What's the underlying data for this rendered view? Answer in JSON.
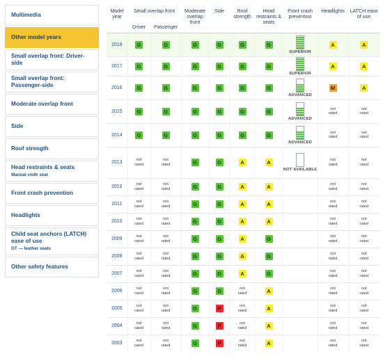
{
  "sidebar": {
    "items": [
      {
        "label": "Multimedia",
        "sub": "",
        "active": false,
        "h": 30
      },
      {
        "label": "Other model years",
        "sub": "",
        "active": true,
        "h": 30
      },
      {
        "label": "Small overlap front: Driver-side",
        "sub": "",
        "active": false,
        "h": 30
      },
      {
        "label": "Small overlap front: Passenger-side",
        "sub": "",
        "active": false,
        "h": 30
      },
      {
        "label": "Moderate overlap front",
        "sub": "",
        "active": false,
        "h": 30
      },
      {
        "label": "Side",
        "sub": "",
        "active": false,
        "h": 30
      },
      {
        "label": "Roof strength",
        "sub": "",
        "active": false,
        "h": 30
      },
      {
        "label": "Head restraints & seats",
        "sub": "Manual cloth seat",
        "active": false,
        "h": 30
      },
      {
        "label": "Front crash prevention",
        "sub": "",
        "active": false,
        "h": 30
      },
      {
        "label": "Headlights",
        "sub": "",
        "active": false,
        "h": 30
      },
      {
        "label": "Child seat anchors (LATCH) ease of use",
        "sub": "GT — leather seats",
        "active": false,
        "h": 40
      },
      {
        "label": "Other safety features",
        "sub": "",
        "active": false,
        "h": 30
      }
    ]
  },
  "table": {
    "headers": {
      "model_year": "Model year",
      "small_overlap": "Small overlap front",
      "driver": "Driver",
      "passenger": "Passenger",
      "moderate": "Moderate overlap front",
      "side": "Side",
      "roof": "Roof strength",
      "head": "Head restraints & seats",
      "fcp": "Front crash prevention",
      "headlights": "Headlights",
      "latch": "LATCH ease of use"
    },
    "not_rated": "not rated",
    "rows": [
      {
        "year": "2018",
        "driver": "G",
        "passenger": "G",
        "moderate": "G",
        "side": "G",
        "roof": "G",
        "head": "G",
        "fcp": {
          "bars": 6,
          "label": "SUPERIOR"
        },
        "headlights": "A",
        "latch": "A"
      },
      {
        "year": "2017",
        "driver": "G",
        "passenger": "G",
        "moderate": "G",
        "side": "G",
        "roof": "G",
        "head": "G",
        "fcp": {
          "bars": 6,
          "label": "SUPERIOR"
        },
        "headlights": "A",
        "latch": "A"
      },
      {
        "year": "2016",
        "driver": "G",
        "passenger": "G",
        "moderate": "G",
        "side": "G",
        "roof": "G",
        "head": "G",
        "fcp": {
          "bars": 4,
          "label": "ADVANCED"
        },
        "headlights": "M",
        "latch": "A"
      },
      {
        "year": "2015",
        "driver": "G",
        "passenger": "G",
        "moderate": "G",
        "side": "G",
        "roof": "G",
        "head": "G",
        "fcp": {
          "bars": 4,
          "label": "ADVANCED"
        },
        "headlights": "NR",
        "latch": "NR"
      },
      {
        "year": "2014",
        "driver": "G",
        "passenger": "G",
        "moderate": "G",
        "side": "G",
        "roof": "G",
        "head": "G",
        "fcp": {
          "bars": 4,
          "label": "ADVANCED"
        },
        "headlights": "NR",
        "latch": "NR"
      },
      {
        "year": "2013",
        "driver": "NR",
        "passenger": "NR",
        "moderate": "G",
        "side": "G",
        "roof": "A",
        "head": "A",
        "fcp": {
          "bars": 0,
          "label": "NOT AVAILABLE"
        },
        "headlights": "NR",
        "latch": "NR"
      },
      {
        "year": "2012",
        "driver": "NR",
        "passenger": "NR",
        "moderate": "G",
        "side": "G",
        "roof": "A",
        "head": "A",
        "fcp": null,
        "headlights": "NR",
        "latch": "NR"
      },
      {
        "year": "2011",
        "driver": "NR",
        "passenger": "NR",
        "moderate": "G",
        "side": "G",
        "roof": "A",
        "head": "A",
        "fcp": null,
        "headlights": "NR",
        "latch": "NR"
      },
      {
        "year": "2010",
        "driver": "NR",
        "passenger": "NR",
        "moderate": "G",
        "side": "G",
        "roof": "A",
        "head": "A",
        "fcp": null,
        "headlights": "NR",
        "latch": "NR"
      },
      {
        "year": "2009",
        "driver": "NR",
        "passenger": "NR",
        "moderate": "G",
        "side": "G",
        "roof": "A",
        "head": "G",
        "fcp": null,
        "headlights": "NR",
        "latch": "NR"
      },
      {
        "year": "2008",
        "driver": "NR",
        "passenger": "NR",
        "moderate": "G",
        "side": "G",
        "roof": "A",
        "head": "G",
        "fcp": null,
        "headlights": "NR",
        "latch": "NR"
      },
      {
        "year": "2007",
        "driver": "NR",
        "passenger": "NR",
        "moderate": "G",
        "side": "G",
        "roof": "A",
        "head": "G",
        "fcp": null,
        "headlights": "NR",
        "latch": "NR"
      },
      {
        "year": "2006",
        "driver": "NR",
        "passenger": "NR",
        "moderate": "G",
        "side": "G",
        "roof": "NR",
        "head": "A",
        "fcp": null,
        "headlights": "NR",
        "latch": "NR"
      },
      {
        "year": "2005",
        "driver": "NR",
        "passenger": "NR",
        "moderate": "G",
        "side": "P",
        "roof": "NR",
        "head": "A",
        "fcp": null,
        "headlights": "NR",
        "latch": "NR"
      },
      {
        "year": "2004",
        "driver": "NR",
        "passenger": "NR",
        "moderate": "G",
        "side": "P",
        "roof": "NR",
        "head": "A",
        "fcp": null,
        "headlights": "NR",
        "latch": "NR"
      },
      {
        "year": "2003",
        "driver": "NR",
        "passenger": "NR",
        "moderate": "G",
        "side": "P",
        "roof": "NR",
        "head": "A",
        "fcp": null,
        "headlights": "NR",
        "latch": "NR"
      }
    ]
  },
  "colors": {
    "good": "#55c437",
    "acceptable": "#f8ef2d",
    "marginal": "#f0a12a",
    "poor": "#e42c2c",
    "active_tab": "#f5c433"
  }
}
